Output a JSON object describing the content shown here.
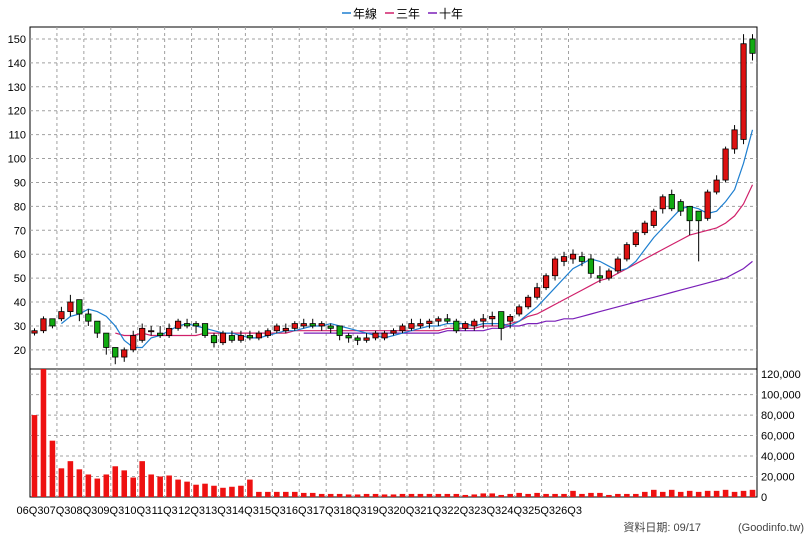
{
  "chart_data": {
    "type": "candlestick",
    "legend": [
      {
        "label": "年線",
        "color": "#1e7fd0"
      },
      {
        "label": "三年",
        "color": "#d0206a"
      },
      {
        "label": "十年",
        "color": "#7a1fb8"
      }
    ],
    "legend_position": "top-center",
    "grid": true,
    "price_axis": {
      "ylim": [
        12,
        155
      ],
      "ticks": [
        20,
        30,
        40,
        50,
        60,
        70,
        80,
        90,
        100,
        110,
        120,
        130,
        140,
        150
      ]
    },
    "volume_axis": {
      "ylim": [
        0,
        125000
      ],
      "ticks": [
        "0",
        "20,000",
        "40,000",
        "60,000",
        "80,000",
        "100,000",
        "120,000"
      ],
      "tick_values": [
        0,
        20000,
        40000,
        60000,
        80000,
        100000,
        120000
      ]
    },
    "quarter_labels": [
      "06Q3",
      "07Q3",
      "08Q3",
      "09Q3",
      "10Q3",
      "11Q3",
      "12Q3",
      "13Q3",
      "14Q3",
      "15Q3",
      "16Q3",
      "17Q3",
      "18Q3",
      "19Q3",
      "20Q3",
      "21Q3",
      "22Q3",
      "23Q3",
      "24Q3",
      "25Q3",
      "26Q3"
    ],
    "months_per_bar": 4,
    "candles": [
      [
        27,
        29,
        26,
        28
      ],
      [
        28,
        34,
        27,
        33
      ],
      [
        33,
        33,
        29,
        30
      ],
      [
        33,
        38,
        32,
        36
      ],
      [
        36,
        43,
        34,
        40
      ],
      [
        41,
        41,
        32,
        35
      ],
      [
        35,
        37,
        30,
        32
      ],
      [
        32,
        32,
        25,
        27
      ],
      [
        27,
        27,
        18,
        21
      ],
      [
        21,
        21,
        14,
        17
      ],
      [
        17,
        21,
        15,
        20
      ],
      [
        20,
        28,
        19,
        26
      ],
      [
        24,
        31,
        23,
        29
      ],
      [
        28,
        30,
        26,
        28
      ],
      [
        27,
        30,
        25,
        26
      ],
      [
        26,
        31,
        25,
        29
      ],
      [
        29,
        33,
        28,
        32
      ],
      [
        31,
        33,
        29,
        30
      ],
      [
        31,
        32,
        27,
        30
      ],
      [
        31,
        31,
        25,
        26
      ],
      [
        26,
        27,
        21,
        23
      ],
      [
        23,
        28,
        22,
        27
      ],
      [
        26,
        28,
        23,
        24
      ],
      [
        24,
        28,
        23,
        26
      ],
      [
        26,
        28,
        24,
        25
      ],
      [
        25,
        28,
        24,
        27
      ],
      [
        26,
        29,
        25,
        28
      ],
      [
        28,
        31,
        27,
        30
      ],
      [
        28,
        31,
        27,
        29
      ],
      [
        29,
        32,
        28,
        31
      ],
      [
        30,
        33,
        29,
        31
      ],
      [
        31,
        33,
        29,
        30
      ],
      [
        30,
        32,
        28,
        31
      ],
      [
        30,
        31,
        27,
        29
      ],
      [
        30,
        30,
        24,
        26
      ],
      [
        26,
        27,
        23,
        25
      ],
      [
        25,
        26,
        22,
        24
      ],
      [
        24,
        27,
        23,
        25
      ],
      [
        25,
        28,
        24,
        27
      ],
      [
        25,
        28,
        24,
        27
      ],
      [
        27,
        29,
        26,
        28
      ],
      [
        28,
        31,
        27,
        30
      ],
      [
        29,
        33,
        28,
        31
      ],
      [
        30,
        33,
        29,
        31
      ],
      [
        31,
        33,
        29,
        32
      ],
      [
        32,
        34,
        30,
        33
      ],
      [
        33,
        35,
        31,
        32
      ],
      [
        32,
        33,
        27,
        28
      ],
      [
        29,
        32,
        28,
        31
      ],
      [
        30,
        33,
        28,
        32
      ],
      [
        32,
        35,
        29,
        33
      ],
      [
        33,
        36,
        30,
        34
      ],
      [
        36,
        36,
        24,
        29
      ],
      [
        32,
        35,
        29,
        34
      ],
      [
        35,
        39,
        34,
        38
      ],
      [
        38,
        43,
        37,
        42
      ],
      [
        42,
        48,
        41,
        46
      ],
      [
        46,
        52,
        45,
        51
      ],
      [
        51,
        59,
        49,
        58
      ],
      [
        57,
        61,
        55,
        59
      ],
      [
        58,
        62,
        56,
        60
      ],
      [
        59,
        61,
        55,
        57
      ],
      [
        58,
        60,
        50,
        52
      ],
      [
        51,
        55,
        48,
        50
      ],
      [
        50,
        54,
        49,
        53
      ],
      [
        53,
        59,
        52,
        58
      ],
      [
        58,
        65,
        57,
        64
      ],
      [
        64,
        70,
        63,
        69
      ],
      [
        69,
        74,
        68,
        73
      ],
      [
        72,
        79,
        71,
        78
      ],
      [
        79,
        85,
        77,
        84
      ],
      [
        85,
        87,
        78,
        79
      ],
      [
        82,
        83,
        76,
        78
      ],
      [
        80,
        80,
        68,
        74
      ],
      [
        78,
        78,
        57,
        74
      ],
      [
        75,
        87,
        74,
        86
      ],
      [
        86,
        93,
        85,
        91
      ],
      [
        91,
        105,
        90,
        104
      ],
      [
        104,
        114,
        102,
        112
      ],
      [
        108,
        152,
        106,
        148
      ],
      [
        150,
        152,
        141,
        144
      ]
    ],
    "volume": [
      80000,
      125000,
      55000,
      28000,
      35000,
      27000,
      22000,
      18000,
      22000,
      30000,
      26000,
      19000,
      35000,
      22000,
      20000,
      21000,
      17000,
      15000,
      12000,
      13000,
      11000,
      9000,
      10000,
      11000,
      17000,
      5000,
      5000,
      5000,
      5000,
      5000,
      4000,
      4000,
      3000,
      3000,
      3000,
      2500,
      2500,
      3000,
      3000,
      2500,
      2500,
      3000,
      3000,
      3000,
      3000,
      3000,
      3000,
      3000,
      2000,
      2500,
      3500,
      3500,
      2000,
      3000,
      4000,
      3000,
      4000,
      3000,
      3000,
      3000,
      6000,
      3000,
      4000,
      4000,
      2000,
      3000,
      3000,
      3000,
      5000,
      7000,
      5000,
      7000,
      5000,
      6000,
      5000,
      6000,
      6000,
      7000,
      5000,
      6000,
      7000
    ],
    "ma_year": [
      null,
      null,
      null,
      31,
      34,
      35,
      37,
      36,
      34,
      30,
      24,
      21,
      21,
      25,
      26,
      28,
      30,
      31,
      30,
      29,
      28,
      27,
      27,
      26,
      25,
      25,
      26,
      27,
      28,
      28,
      29,
      30,
      30,
      31,
      30,
      29,
      28,
      27,
      26,
      25,
      26,
      27,
      28,
      29,
      30,
      30,
      31,
      31,
      31,
      30,
      31,
      31,
      31,
      30,
      32,
      35,
      38,
      42,
      46,
      50,
      54,
      56,
      58,
      57,
      55,
      53,
      54,
      57,
      62,
      67,
      71,
      75,
      79,
      80,
      79,
      77,
      78,
      82,
      87,
      98,
      112
    ],
    "ma_3yr": [
      null,
      null,
      null,
      null,
      null,
      null,
      null,
      null,
      null,
      27,
      26,
      26,
      27,
      26,
      26,
      26,
      26,
      26,
      26,
      27,
      27,
      27,
      27,
      27,
      27,
      27,
      27,
      27,
      27,
      28,
      28,
      28,
      28,
      28,
      28,
      28,
      28,
      28,
      28,
      28,
      28,
      28,
      28,
      28,
      28,
      28,
      29,
      29,
      29,
      29,
      30,
      30,
      30,
      31,
      32,
      34,
      35,
      37,
      39,
      41,
      43,
      45,
      47,
      49,
      50,
      52,
      54,
      56,
      58,
      60,
      62,
      64,
      66,
      68,
      69,
      70,
      71,
      73,
      76,
      81,
      89
    ],
    "ma_10yr": [
      null,
      null,
      null,
      null,
      null,
      null,
      null,
      null,
      null,
      null,
      null,
      null,
      null,
      null,
      null,
      null,
      null,
      null,
      null,
      null,
      null,
      null,
      null,
      null,
      null,
      null,
      null,
      null,
      null,
      null,
      27,
      27,
      27,
      27,
      27,
      27,
      27,
      27,
      27,
      27,
      27,
      27,
      27,
      27,
      27,
      27,
      28,
      28,
      28,
      28,
      28,
      29,
      29,
      30,
      30,
      31,
      31,
      32,
      32,
      33,
      33,
      34,
      35,
      36,
      37,
      38,
      39,
      40,
      41,
      42,
      43,
      44,
      45,
      46,
      47,
      48,
      49,
      50,
      52,
      54,
      57
    ]
  },
  "footer": {
    "date_text": "資料日期: 09/17",
    "source_text": "(Goodinfo.tw)"
  }
}
